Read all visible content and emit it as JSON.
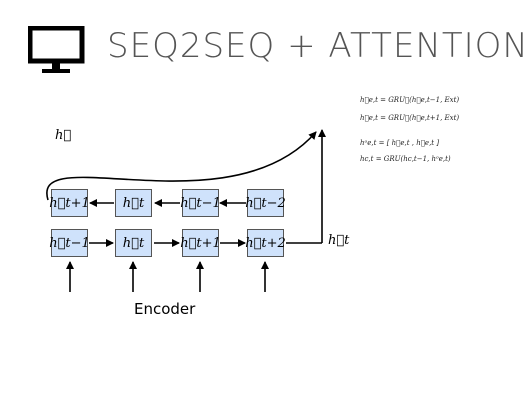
{
  "slide": {
    "title": "SEQ2SEQ + ATTENTION",
    "icon": "monitor-icon"
  },
  "equations": [
    "h⃖e,t = GRU⃖(h⃖e,t−1, Ext)",
    "h⃗e,t = GRU⃗(h⃗e,t+1, Ext)",
    "hᵒe,t = [ h⃗e,t , h⃖e,t ]",
    "hc,t = GRU(hc,t−1, hᵒe,t)"
  ],
  "diagram": {
    "backward_cells": [
      "h⃖t+1",
      "h⃖t",
      "h⃖t−1",
      "h⃖t−2"
    ],
    "forward_cells": [
      "h⃗t−1",
      "h⃗t",
      "h⃗t+1",
      "h⃗t+2"
    ],
    "backward_label": "h⃖",
    "forward_label": "h⃗t",
    "encoder_label": "Encoder"
  },
  "colors": {
    "cell_fill": "#cfe2fb",
    "cell_border": "#555555",
    "title": "#555555"
  }
}
